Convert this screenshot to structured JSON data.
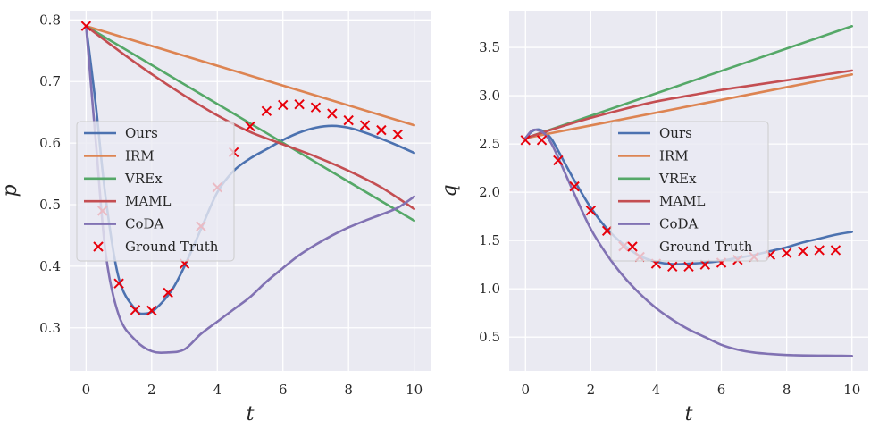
{
  "chart_data": [
    {
      "type": "line",
      "xlabel": "t",
      "ylabel": "p",
      "xlim": [
        -0.5,
        10.5
      ],
      "ylim": [
        0.23,
        0.815
      ],
      "xticks": [
        0,
        2,
        4,
        6,
        8,
        10
      ],
      "yticks": [
        0.3,
        0.4,
        0.5,
        0.6,
        0.7,
        0.8
      ],
      "xtick_labels": [
        "0",
        "2",
        "4",
        "6",
        "8",
        "10"
      ],
      "ytick_labels": [
        "0.3",
        "0.4",
        "0.5",
        "0.6",
        "0.7",
        "0.8"
      ],
      "legend": "center-left",
      "series": [
        {
          "name": "Ours",
          "color": "#4c72b0",
          "x": [
            0,
            0.3,
            0.6,
            1.0,
            1.5,
            1.8,
            2.1,
            2.6,
            3.0,
            3.5,
            4.0,
            4.5,
            5.0,
            5.5,
            6.0,
            6.5,
            7.0,
            7.5,
            8.0,
            8.5,
            9.0,
            9.5,
            10.0
          ],
          "y": [
            0.79,
            0.66,
            0.51,
            0.38,
            0.33,
            0.323,
            0.33,
            0.36,
            0.4,
            0.46,
            0.52,
            0.555,
            0.575,
            0.59,
            0.605,
            0.617,
            0.625,
            0.628,
            0.625,
            0.617,
            0.607,
            0.596,
            0.584
          ]
        },
        {
          "name": "IRM",
          "color": "#dd8452",
          "x": [
            0,
            10
          ],
          "y": [
            0.79,
            0.629
          ]
        },
        {
          "name": "VREx",
          "color": "#55a868",
          "x": [
            0,
            10
          ],
          "y": [
            0.79,
            0.474
          ]
        },
        {
          "name": "MAML",
          "color": "#c44e52",
          "x": [
            0,
            1,
            2,
            3,
            4,
            5,
            6,
            7,
            8,
            9,
            10
          ],
          "y": [
            0.79,
            0.75,
            0.712,
            0.677,
            0.645,
            0.618,
            0.598,
            0.578,
            0.555,
            0.528,
            0.493
          ]
        },
        {
          "name": "CoDA",
          "color": "#8172b3",
          "x": [
            0,
            0.3,
            0.6,
            1.0,
            1.5,
            2.0,
            2.5,
            3.0,
            3.5,
            4.0,
            4.5,
            5.0,
            5.5,
            6.0,
            6.5,
            7.0,
            7.5,
            8.0,
            8.5,
            9.0,
            9.5,
            10.0
          ],
          "y": [
            0.79,
            0.6,
            0.42,
            0.32,
            0.28,
            0.262,
            0.26,
            0.265,
            0.29,
            0.31,
            0.33,
            0.35,
            0.375,
            0.397,
            0.418,
            0.435,
            0.45,
            0.463,
            0.474,
            0.484,
            0.495,
            0.513
          ]
        }
      ],
      "scatter": {
        "name": "Ground Truth",
        "color": "#e8000b",
        "x": [
          0,
          0.5,
          1.0,
          1.5,
          2.0,
          2.5,
          3.0,
          3.5,
          4.0,
          4.5,
          5.0,
          5.5,
          6.0,
          6.5,
          7.0,
          7.5,
          8.0,
          8.5,
          9.0,
          9.5
        ],
        "y": [
          0.79,
          0.49,
          0.372,
          0.329,
          0.328,
          0.357,
          0.404,
          0.465,
          0.528,
          0.585,
          0.627,
          0.652,
          0.662,
          0.663,
          0.658,
          0.648,
          0.637,
          0.629,
          0.621,
          0.614
        ]
      }
    },
    {
      "type": "line",
      "xlabel": "t",
      "ylabel": "q",
      "xlim": [
        -0.5,
        10.5
      ],
      "ylim": [
        0.15,
        3.88
      ],
      "xticks": [
        0,
        2,
        4,
        6,
        8,
        10
      ],
      "yticks": [
        0.5,
        1.0,
        1.5,
        2.0,
        2.5,
        3.0,
        3.5
      ],
      "xtick_labels": [
        "0",
        "2",
        "4",
        "6",
        "8",
        "10"
      ],
      "ytick_labels": [
        "0.5",
        "1.0",
        "1.5",
        "2.0",
        "2.5",
        "3.0",
        "3.5"
      ],
      "legend": "center",
      "series": [
        {
          "name": "Ours",
          "color": "#4c72b0",
          "x": [
            0,
            0.2,
            0.4,
            0.6,
            0.8,
            1.0,
            1.5,
            2.0,
            2.5,
            3.0,
            3.5,
            4.0,
            4.5,
            5.0,
            5.5,
            6.0,
            6.5,
            7.0,
            7.5,
            8.0,
            8.5,
            9.0,
            9.5,
            10.0
          ],
          "y": [
            2.56,
            2.63,
            2.65,
            2.62,
            2.55,
            2.43,
            2.12,
            1.84,
            1.62,
            1.46,
            1.34,
            1.28,
            1.255,
            1.26,
            1.27,
            1.29,
            1.32,
            1.35,
            1.39,
            1.43,
            1.48,
            1.52,
            1.56,
            1.59
          ]
        },
        {
          "name": "IRM",
          "color": "#dd8452",
          "x": [
            0,
            10
          ],
          "y": [
            2.56,
            3.22
          ]
        },
        {
          "name": "VREx",
          "color": "#55a868",
          "x": [
            0,
            10
          ],
          "y": [
            2.56,
            3.72
          ]
        },
        {
          "name": "MAML",
          "color": "#c44e52",
          "x": [
            0,
            1,
            2,
            3,
            4,
            5,
            6,
            7,
            8,
            9,
            10
          ],
          "y": [
            2.56,
            2.67,
            2.77,
            2.86,
            2.94,
            3.0,
            3.06,
            3.11,
            3.16,
            3.21,
            3.26
          ]
        },
        {
          "name": "CoDA",
          "color": "#8172b3",
          "x": [
            0,
            0.2,
            0.4,
            0.6,
            0.8,
            1.0,
            1.5,
            2.0,
            2.5,
            3.0,
            3.5,
            4.0,
            4.5,
            5.0,
            5.5,
            6.0,
            6.5,
            7.0,
            7.5,
            8.0,
            8.5,
            9.0,
            9.5,
            10.0
          ],
          "y": [
            2.56,
            2.64,
            2.64,
            2.6,
            2.5,
            2.36,
            1.98,
            1.62,
            1.35,
            1.13,
            0.95,
            0.8,
            0.68,
            0.58,
            0.5,
            0.42,
            0.37,
            0.34,
            0.325,
            0.315,
            0.31,
            0.308,
            0.307,
            0.305
          ]
        }
      ],
      "scatter": {
        "name": "Ground Truth",
        "color": "#e8000b",
        "x": [
          0,
          0.5,
          1.0,
          1.5,
          2.0,
          2.5,
          3.0,
          3.5,
          4.0,
          4.5,
          5.0,
          5.5,
          6.0,
          6.5,
          7.0,
          7.5,
          8.0,
          8.5,
          9.0,
          9.5
        ],
        "y": [
          2.54,
          2.54,
          2.33,
          2.06,
          1.81,
          1.6,
          1.44,
          1.33,
          1.26,
          1.23,
          1.23,
          1.25,
          1.27,
          1.3,
          1.33,
          1.35,
          1.37,
          1.39,
          1.4,
          1.4
        ]
      }
    }
  ]
}
